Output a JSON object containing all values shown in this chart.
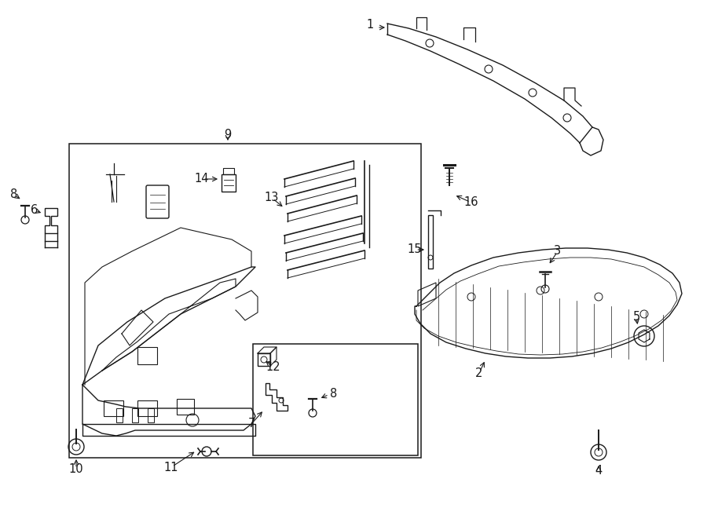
{
  "bg": "#ffffff",
  "lc": "#1a1a1a",
  "lw": 1.0,
  "fig_w": 9.0,
  "fig_h": 6.61,
  "dpi": 100
}
